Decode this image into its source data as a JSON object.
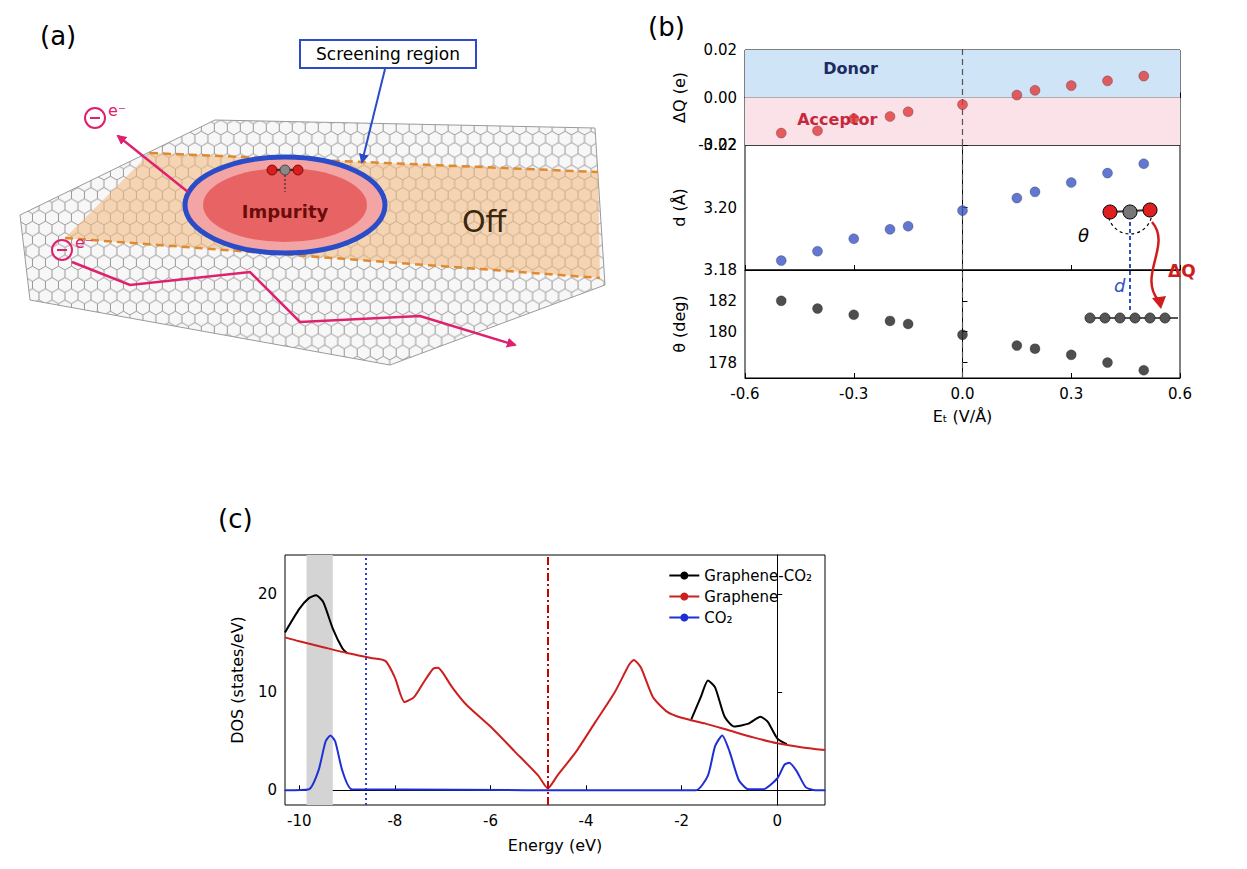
{
  "panel_a": {
    "label": "(a)",
    "diagram": {
      "screening_label": "Screening region",
      "impurity_label": "Impurity",
      "state_label": "Off",
      "electron_label": "e⁻"
    }
  },
  "chart_data": [
    {
      "label": "(b)",
      "type": "scatter",
      "x_label": "Eₜ (V/Å)",
      "xlim": [
        -0.6,
        0.6
      ],
      "xticks": [
        -0.6,
        -0.3,
        {
          "value": 0,
          "label": "0.0"
        },
        0.3,
        0.6
      ],
      "x": [
        -0.5,
        -0.4,
        -0.3,
        -0.2,
        -0.15,
        0,
        0.15,
        0.2,
        0.3,
        0.4,
        0.5
      ],
      "vlines": [
        {
          "x": 0,
          "color": "#555555",
          "line_style": "dashed"
        }
      ],
      "panels": [
        {
          "y_label": "ΔQ (e)",
          "ylim": [
            -0.02,
            0.02
          ],
          "yticks": [
            -0.02,
            {
              "value": 0,
              "label": "0.00"
            },
            0.02
          ],
          "series": [
            {
              "color": "#e03a3a",
              "marker": "circle",
              "values": [
                -0.015,
                -0.014,
                -0.009,
                -0.008,
                -0.006,
                -0.003,
                0.001,
                0.003,
                0.005,
                0.007,
                0.009
              ]
            }
          ],
          "regions": [
            {
              "label": "Donor",
              "ylim": [
                0,
                0.02
              ],
              "color": "#cfe4f6"
            },
            {
              "label": "Acceptor",
              "ylim": [
                -0.02,
                0
              ],
              "color": "#fbe1e8"
            }
          ]
        },
        {
          "y_label": "d (Å)",
          "ylim": [
            3.18,
            3.22
          ],
          "yticks": [
            3.18,
            {
              "value": 3.2,
              "label": "3.20"
            },
            3.22
          ],
          "series": [
            {
              "color": "#3a55c4",
              "marker": "circle",
              "values": [
                3.183,
                3.186,
                3.19,
                3.193,
                3.194,
                3.199,
                3.203,
                3.205,
                3.208,
                3.211,
                3.214
              ]
            }
          ]
        },
        {
          "y_label": "θ (deg)",
          "ylim": [
            177,
            184
          ],
          "yticks": [
            178,
            180,
            182
          ],
          "series": [
            {
              "color": "#222222",
              "marker": "circle",
              "values": [
                182.0,
                181.5,
                181.1,
                180.7,
                180.5,
                179.8,
                179.1,
                178.9,
                178.5,
                178.0,
                177.5
              ]
            }
          ]
        }
      ],
      "inset": {
        "angle_label": "θ",
        "distance_label": "d",
        "charge_label": "ΔQ"
      }
    },
    {
      "label": "(c)",
      "type": "line",
      "x_label": "Energy (eV)",
      "y_label": "DOS (states/eV)",
      "xlim": [
        -10.3,
        1
      ],
      "xticks": [
        -10,
        -8,
        -6,
        -4,
        -2,
        0
      ],
      "ylim": [
        -1.5,
        24
      ],
      "yticks": [
        0,
        10,
        20
      ],
      "legend": "top-right",
      "bands": [
        {
          "x": [
            -9.85,
            -9.3
          ],
          "color": "#d4d4d4"
        }
      ],
      "vlines": [
        {
          "x": -8.6,
          "color": "#2a3fd0",
          "line_style": "dotted"
        },
        {
          "x": -4.8,
          "color": "#cc0000",
          "line_style": "dashdot"
        }
      ],
      "series": [
        {
          "name": "Graphene-CO₂",
          "color": "#000000",
          "x": [
            -10.3,
            -10.0,
            -9.8,
            -9.65,
            -9.5,
            -9.3,
            -9.1,
            -9.0,
            -5.0,
            -1.8,
            -1.6,
            -1.45,
            -1.3,
            -1.1,
            -0.9,
            -0.6,
            -0.35,
            -0.2,
            0,
            0.2
          ],
          "values": [
            16.1,
            18.5,
            19.6,
            19.9,
            19.2,
            16.5,
            14.5,
            14.0,
            null,
            7.2,
            9.5,
            11.2,
            10.5,
            7.5,
            6.5,
            6.8,
            7.5,
            7.0,
            5.3,
            4.7
          ]
        },
        {
          "name": "Graphene",
          "color": "#cc1f1f",
          "x": [
            -10.3,
            -10,
            -9.5,
            -9,
            -8.5,
            -8.2,
            -8,
            -7.8,
            -7.6,
            -7.4,
            -7.2,
            -7.1,
            -7.0,
            -6.8,
            -6.5,
            -6,
            -5.5,
            -5,
            -4.8,
            -4.6,
            -4.2,
            -3.8,
            -3.4,
            -3.1,
            -3.0,
            -2.85,
            -2.6,
            -2.3,
            -2,
            -1.5,
            -1,
            -0.5,
            0,
            0.5,
            1
          ],
          "values": [
            15.6,
            15.2,
            14.6,
            14.0,
            13.5,
            13.2,
            11.5,
            9.0,
            9.5,
            11.0,
            12.4,
            12.5,
            12.0,
            10.5,
            8.7,
            6.5,
            4.0,
            1.5,
            0.2,
            1.5,
            4.0,
            7.0,
            10.0,
            12.8,
            13.3,
            12.5,
            9.5,
            8.0,
            7.4,
            6.8,
            6.1,
            5.4,
            4.8,
            4.4,
            4.1
          ]
        },
        {
          "name": "CO₂",
          "color": "#1f2fd6",
          "x": [
            -10.3,
            -9.8,
            -9.6,
            -9.45,
            -9.35,
            -9.25,
            -9.1,
            -8.9,
            -1.7,
            -1.45,
            -1.3,
            -1.15,
            -1.0,
            -0.8,
            -0.6,
            -0.3,
            0,
            0.15,
            0.25,
            0.4,
            0.6,
            0.8,
            1
          ],
          "values": [
            0,
            0.1,
            2.0,
            5.0,
            5.6,
            5.0,
            2.0,
            0.1,
            0,
            1.5,
            4.5,
            5.6,
            4.0,
            1.0,
            0.1,
            0.1,
            1.2,
            2.6,
            2.8,
            2.0,
            0.3,
            0,
            0
          ]
        }
      ]
    }
  ]
}
